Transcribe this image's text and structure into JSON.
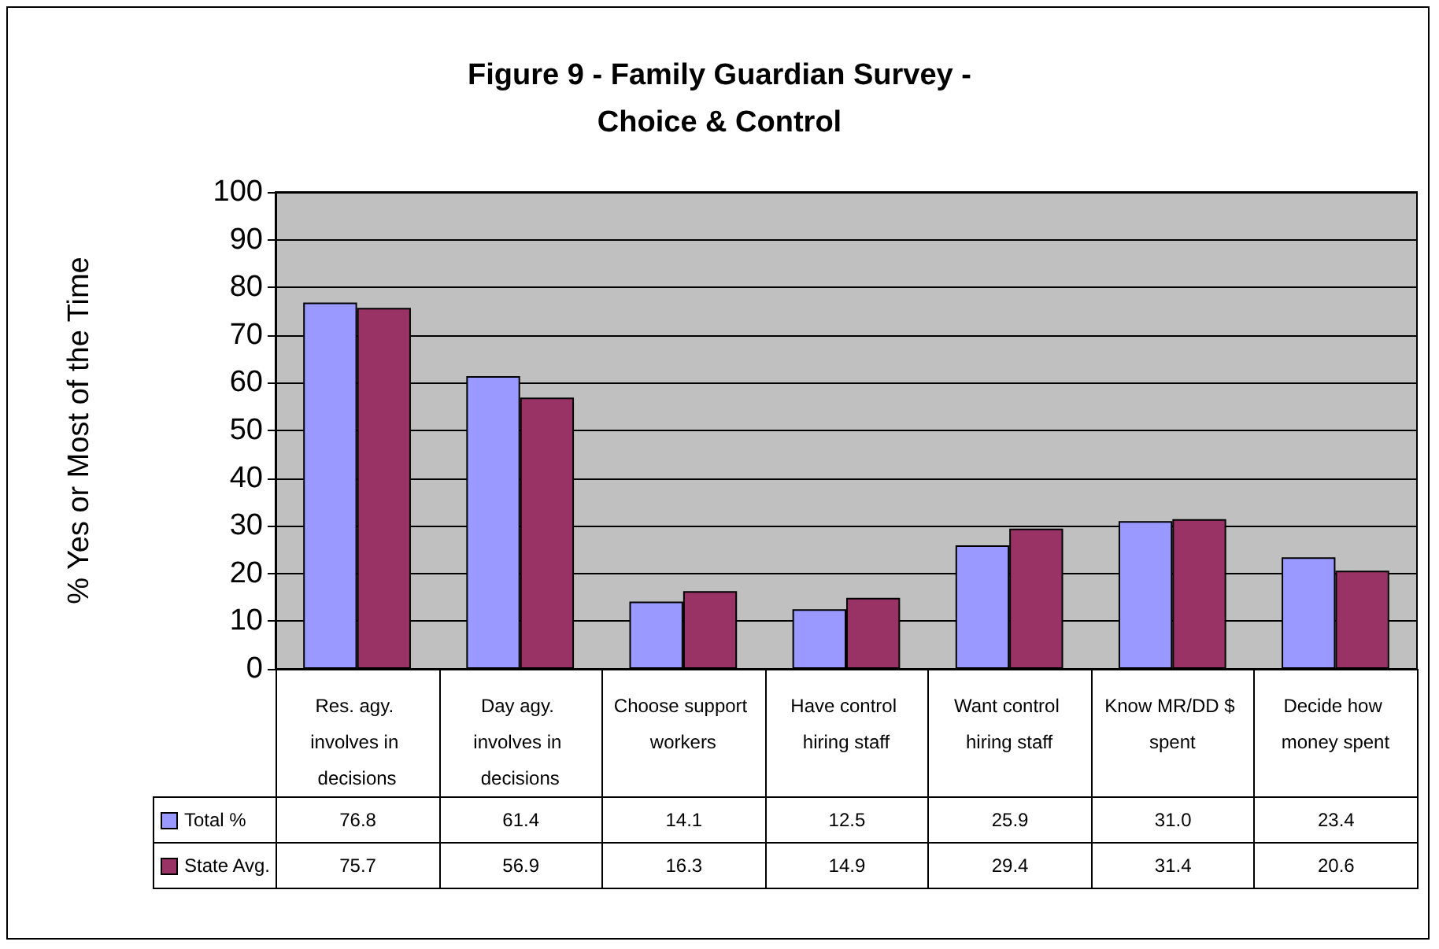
{
  "chart_data": {
    "type": "bar",
    "title": "Figure 9 - Family Guardian Survey -\nChoice & Control",
    "ylabel": "% Yes or Most of the Time",
    "categories": [
      "Res. agy. involves in decisions",
      "Day agy. involves in decisions",
      "Choose support workers",
      "Have control hiring staff",
      "Want control hiring staff",
      "Know MR/DD $ spent",
      "Decide how money spent"
    ],
    "series": [
      {
        "name": "Total %",
        "color": "#9999ff",
        "values": [
          76.8,
          61.4,
          14.1,
          12.5,
          25.9,
          31.0,
          23.4
        ],
        "value_labels": [
          "76.8",
          "61.4",
          "14.1",
          "12.5",
          "25.9",
          "31.0",
          "23.4"
        ]
      },
      {
        "name": "State Avg.",
        "color": "#993366",
        "values": [
          75.7,
          56.9,
          16.3,
          14.9,
          29.4,
          31.4,
          20.6
        ],
        "value_labels": [
          "75.7",
          "56.9",
          "16.3",
          "14.9",
          "29.4",
          "31.4",
          "20.6"
        ]
      }
    ],
    "ylim": [
      0,
      100
    ],
    "yticks": [
      0,
      10,
      20,
      30,
      40,
      50,
      60,
      70,
      80,
      90,
      100
    ],
    "grid": "y",
    "legend": "bottom left"
  }
}
